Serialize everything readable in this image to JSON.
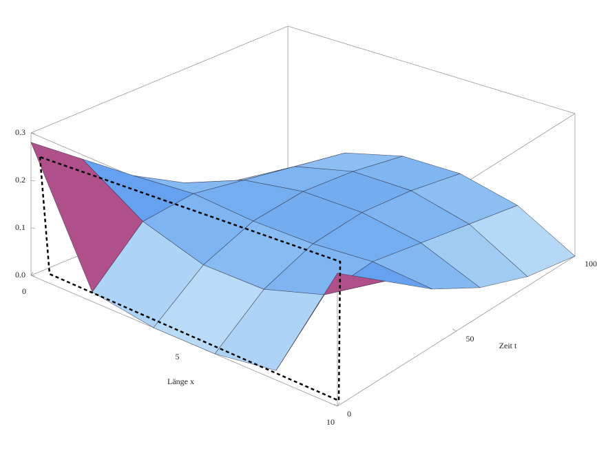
{
  "chart_data": {
    "type": "surface",
    "x_label": "Länge x",
    "y_label": "Zeit t",
    "x": [
      0,
      2,
      4,
      6,
      8,
      10
    ],
    "y": [
      0,
      20,
      40,
      60,
      80,
      100
    ],
    "z": [
      [
        0.28,
        0.02,
        0,
        0,
        0.02,
        0.28
      ],
      [
        0.2,
        0.12,
        0.08,
        0.08,
        0.12,
        0.2
      ],
      [
        0.12,
        0.13,
        0.12,
        0.12,
        0.13,
        0.12
      ],
      [
        0.06,
        0.11,
        0.13,
        0.13,
        0.11,
        0.06
      ],
      [
        0.02,
        0.09,
        0.12,
        0.12,
        0.09,
        0.02
      ],
      [
        0,
        0.07,
        0.1,
        0.1,
        0.07,
        0
      ]
    ],
    "xlim": [
      0,
      10
    ],
    "ylim": [
      0,
      100
    ],
    "zlim": [
      0,
      0.3
    ],
    "xticks": [
      0,
      5,
      10
    ],
    "yticks": [
      0,
      50,
      100
    ],
    "zticks": [
      {
        "value": 0,
        "label": "0.0"
      },
      0.1,
      0.2,
      0.3
    ]
  }
}
